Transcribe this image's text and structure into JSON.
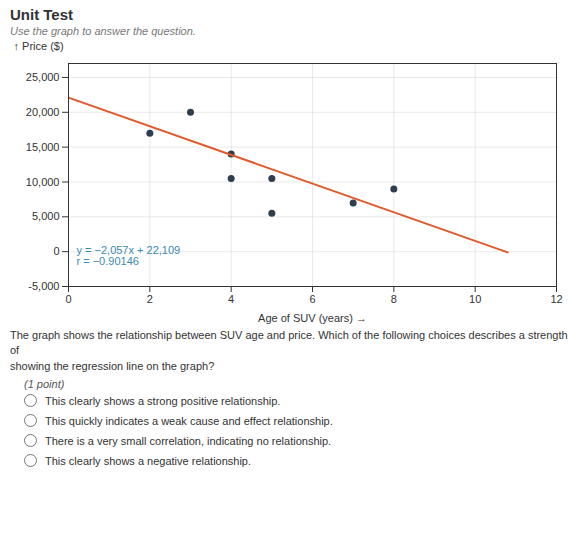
{
  "chart_data": {
    "type": "scatter",
    "title": "Unit Test",
    "subtitle": "Use the graph to answer the question.",
    "xlabel": "Age of SUV (years)",
    "ylabel": "Price ($)",
    "series": [
      {
        "type": "scatter",
        "color": "#2e3d4f",
        "x": [
          2,
          3,
          4,
          4,
          5,
          5,
          7,
          8
        ],
        "values": [
          17000,
          20000,
          14000,
          10500,
          10500,
          5500,
          7000,
          9000
        ]
      },
      {
        "type": "line",
        "color": "#e05a2b",
        "x": [
          0,
          10.8
        ],
        "values": [
          22109,
          -106.6
        ]
      }
    ],
    "xlim": [
      0,
      12
    ],
    "xticks": [
      0,
      2,
      4,
      6,
      8,
      10,
      12
    ],
    "ylim": [
      -5000,
      27000
    ],
    "yticks": [
      {
        "value": -5000,
        "label": "-5,000"
      },
      0,
      {
        "value": 5000,
        "label": "5,000"
      },
      {
        "value": 10000,
        "label": "10,000"
      },
      {
        "value": 15000,
        "label": "15,000"
      },
      {
        "value": 20000,
        "label": "20,000"
      },
      {
        "value": 25000,
        "label": "25,000"
      }
    ],
    "grid": true,
    "annotations": [
      "y = −2,057x + 22,109",
      "r = −0.90146"
    ],
    "question": "The graph shows the relationship between SUV age and price. Which of the following choices describes a strength of\nshowing the regression line on the graph?",
    "note": "(1 point)",
    "choices": [
      "This clearly shows a strong positive relationship.",
      "This quickly indicates a weak cause and effect relationship.",
      "There is a very small correlation, indicating no relationship.",
      "This clearly shows a negative relationship."
    ]
  }
}
